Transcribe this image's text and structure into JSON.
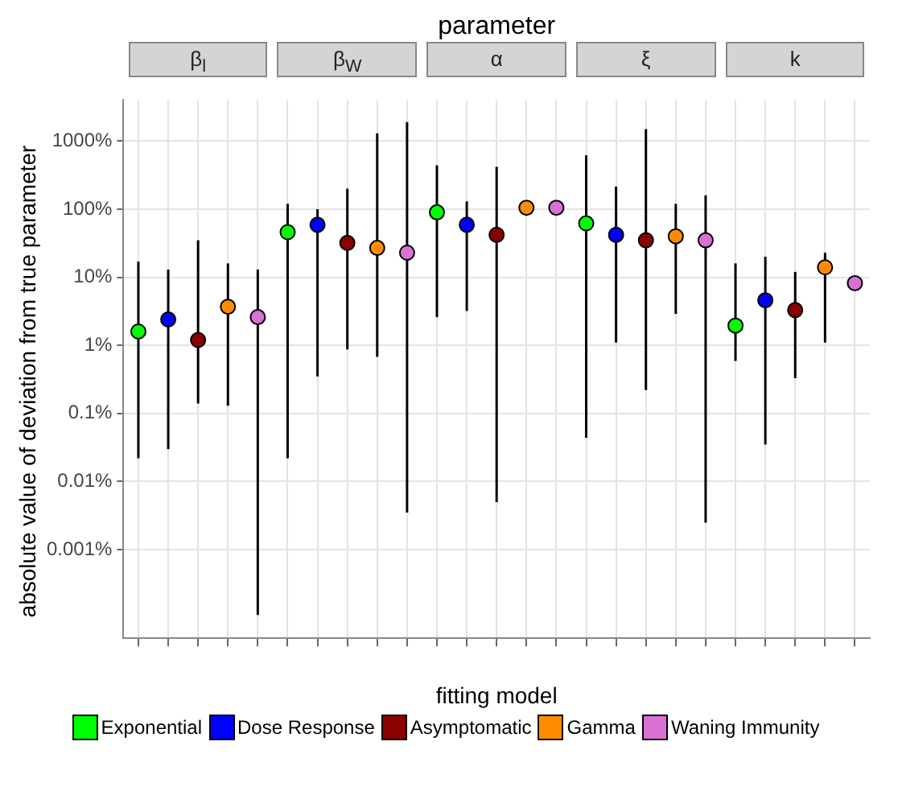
{
  "chart_data": {
    "type": "scatter",
    "title": "parameter",
    "annotations": [
      "β$_{l}$",
      "β$_{W}$",
      "α",
      "ξ",
      "k"
    ],
    "xlabel": "fitting model",
    "ylabel": "absolute value of deviation from true parameter",
    "legend": "bottom",
    "categories": [
      null,
      null,
      null,
      null,
      null,
      null,
      null,
      null,
      null,
      null,
      null,
      null,
      null,
      null,
      null,
      null,
      null,
      null,
      null,
      null,
      null,
      null,
      null,
      null,
      null
    ],
    "log": "y",
    "grid": true,
    "marker": "circle",
    "ylim": [
      5e-05,
      4000
    ],
    "yticks": [
      {
        "value": 0.001,
        "label": "0.001%"
      },
      {
        "value": 0.01,
        "label": "0.01%"
      },
      {
        "value": 0.1,
        "label": "0.1%"
      },
      {
        "value": 1,
        "label": "1%"
      },
      {
        "value": 10,
        "label": "10%"
      },
      {
        "value": 100,
        "label": "100%"
      },
      {
        "value": 1000,
        "label": "1000%"
      }
    ],
    "series": [
      {
        "name": "Exponential",
        "color": "#00ff00",
        "values": [
          1.6,
          null,
          null,
          null,
          null,
          46,
          null,
          null,
          null,
          null,
          90,
          null,
          null,
          null,
          null,
          62,
          null,
          null,
          null,
          null,
          1.95,
          null,
          null,
          null,
          null
        ],
        "errors": [
          [
            0.022,
            17
          ],
          null,
          null,
          null,
          null,
          [
            0.022,
            120
          ],
          null,
          null,
          null,
          null,
          [
            2.6,
            440
          ],
          null,
          null,
          null,
          null,
          [
            0.044,
            620
          ],
          null,
          null,
          null,
          null,
          [
            0.59,
            16
          ],
          null,
          null,
          null,
          null
        ]
      },
      {
        "name": "Dose Response",
        "color": "#0000ff",
        "values": [
          null,
          2.4,
          null,
          null,
          null,
          null,
          59,
          null,
          null,
          null,
          null,
          59,
          null,
          null,
          null,
          null,
          42,
          null,
          null,
          null,
          null,
          4.6,
          null,
          null,
          null
        ],
        "errors": [
          null,
          [
            0.03,
            13
          ],
          null,
          null,
          null,
          null,
          [
            0.35,
            100
          ],
          null,
          null,
          null,
          null,
          [
            3.2,
            130
          ],
          null,
          null,
          null,
          null,
          [
            1.1,
            215
          ],
          null,
          null,
          null,
          null,
          [
            0.035,
            20
          ],
          null,
          null,
          null
        ]
      },
      {
        "name": "Asymptomatic",
        "color": "#8b0000",
        "values": [
          null,
          null,
          1.2,
          null,
          null,
          null,
          null,
          32,
          null,
          null,
          null,
          null,
          42,
          null,
          null,
          null,
          null,
          35,
          null,
          null,
          null,
          null,
          3.3,
          null,
          null
        ],
        "errors": [
          null,
          null,
          [
            0.14,
            35
          ],
          null,
          null,
          null,
          null,
          [
            0.87,
            200
          ],
          null,
          null,
          null,
          null,
          [
            0.005,
            420
          ],
          null,
          null,
          null,
          null,
          [
            0.22,
            1500
          ],
          null,
          null,
          null,
          null,
          [
            0.33,
            12
          ],
          null,
          null
        ]
      },
      {
        "name": "Gamma",
        "color": "#ff8c00",
        "values": [
          null,
          null,
          null,
          3.7,
          null,
          null,
          null,
          null,
          27,
          null,
          null,
          null,
          null,
          105,
          null,
          null,
          null,
          null,
          40,
          null,
          null,
          null,
          null,
          14,
          null
        ],
        "errors": [
          null,
          null,
          null,
          [
            0.13,
            16
          ],
          null,
          null,
          null,
          null,
          [
            0.68,
            1300
          ],
          null,
          null,
          null,
          null,
          null,
          null,
          null,
          null,
          null,
          [
            2.9,
            120
          ],
          null,
          null,
          null,
          null,
          [
            1.1,
            23
          ],
          null
        ]
      },
      {
        "name": "Waning Immunity",
        "color": "#da70d6",
        "values": [
          null,
          null,
          null,
          null,
          2.6,
          null,
          null,
          null,
          null,
          23,
          null,
          null,
          null,
          null,
          105,
          null,
          null,
          null,
          null,
          35,
          null,
          null,
          null,
          null,
          8.2
        ],
        "errors": [
          null,
          null,
          null,
          null,
          [
            0.00011,
            13
          ],
          null,
          null,
          null,
          null,
          [
            0.0035,
            1900
          ],
          null,
          null,
          null,
          null,
          null,
          null,
          null,
          null,
          null,
          [
            0.0025,
            160
          ],
          null,
          null,
          null,
          null,
          null
        ]
      }
    ]
  }
}
